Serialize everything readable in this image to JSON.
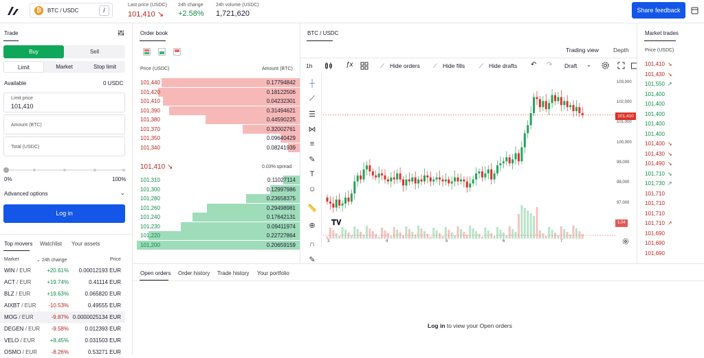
{
  "header": {
    "pair": "BTC / USDC",
    "btc_glyph": "₿",
    "slash": "/",
    "last_price_label": "Last price (USDC)",
    "last_price": "101,410",
    "change_label": "24h change",
    "change": "+2.58%",
    "volume_label": "24h volume (USDC)",
    "volume": "1,721,620",
    "share": "Share feedback"
  },
  "trade": {
    "title": "Trade",
    "buy": "Buy",
    "sell": "Sell",
    "order_types": [
      "Limit",
      "Market",
      "Stop limit"
    ],
    "available_label": "Available",
    "available_value": "0 USDC",
    "limit_label": "Limit price",
    "limit_value": "101,410",
    "amount_placeholder": "Amount (BTC)",
    "total_placeholder": "Total (USDC)",
    "slider_min": "0%",
    "slider_max": "100%",
    "advanced": "Advanced options",
    "login": "Log in"
  },
  "movers": {
    "tabs": [
      "Top movers",
      "Watchlist",
      "Your assets"
    ],
    "col_market": "Market",
    "col_change": "24h change",
    "col_price": "Price",
    "rows": [
      {
        "base": "WIN",
        "quote": "/ EUR",
        "change": "+20.61%",
        "price": "0.00012193 EUR",
        "up": true
      },
      {
        "base": "ACT",
        "quote": "/ EUR",
        "change": "+19.74%",
        "price": "0.41114 EUR",
        "up": true
      },
      {
        "base": "BLZ",
        "quote": "/ EUR",
        "change": "+19.63%",
        "price": "0.065820 EUR",
        "up": true
      },
      {
        "base": "AIXBT",
        "quote": "/ EUR",
        "change": "-10.53%",
        "price": "0.49555 EUR",
        "up": false
      },
      {
        "base": "MOG",
        "quote": "/ EUR",
        "change": "-9.87%",
        "price": "0.0000025134 EUR",
        "up": false
      },
      {
        "base": "DEGEN",
        "quote": "/ EUR",
        "change": "-9.58%",
        "price": "0.012393 EUR",
        "up": false
      },
      {
        "base": "VELO",
        "quote": "/ EUR",
        "change": "+8.45%",
        "price": "0.031503 EUR",
        "up": true
      },
      {
        "base": "OSMO",
        "quote": "/ EUR",
        "change": "-8.26%",
        "price": "0.53271 EUR",
        "up": false
      }
    ]
  },
  "orderbook": {
    "title": "Order book",
    "col_price": "Price (USDC)",
    "col_amount": "Amount (BTC)",
    "asks": [
      [
        "101,440",
        "0.17794842",
        0.85
      ],
      [
        "101,420",
        "0.18122506",
        0.87
      ],
      [
        "101,410",
        "0.04232301",
        0.84
      ],
      [
        "101,390",
        "0.31494621",
        0.8
      ],
      [
        "101,380",
        "0.44590225",
        0.58
      ],
      [
        "101,370",
        "0.32002761",
        0.35
      ],
      [
        "101,350",
        "0.09640429",
        0.12
      ],
      [
        "101,340",
        "0.08241939",
        0.07
      ]
    ],
    "mid_price": "101,410",
    "spread": "0.03% spread",
    "bids": [
      [
        "101,310",
        "0.11027114",
        0.1
      ],
      [
        "101,300",
        "0.12997986",
        0.18
      ],
      [
        "101,280",
        "0.23658375",
        0.33
      ],
      [
        "101,260",
        "0.29498981",
        0.57
      ],
      [
        "101,240",
        "0.17642131",
        0.66
      ],
      [
        "101,230",
        "0.09411974",
        0.73
      ],
      [
        "101,220",
        "0.22727864",
        0.93
      ],
      [
        "101,200",
        "0.20659159",
        1.0
      ]
    ]
  },
  "chart": {
    "tab": "BTC / USDC",
    "view_trading": "Trading view",
    "view_depth": "Depth",
    "interval": "1h",
    "hide_orders": "Hide orders",
    "hide_fills": "Hide fills",
    "hide_drafts": "Hide drafts",
    "draft": "Draft",
    "y_labels": [
      "103,000",
      "102,000",
      "101,000",
      "100,000",
      "99,000",
      "98,000",
      "97,000"
    ],
    "price_tag": "101,410",
    "vol_tag": "1.04",
    "x_labels": [
      "3",
      "4",
      "5",
      "6",
      "7"
    ]
  },
  "market_trades": {
    "title": "Market trades",
    "col": "Price (USDC)",
    "rows": [
      [
        "101,410",
        "d"
      ],
      [
        "101,430",
        "d"
      ],
      [
        "101,550",
        "u"
      ],
      [
        "101,400",
        ""
      ],
      [
        "101,400",
        ""
      ],
      [
        "101,400",
        ""
      ],
      [
        "101,400",
        ""
      ],
      [
        "101,400",
        ""
      ],
      [
        "101,400",
        "d"
      ],
      [
        "101,430",
        "d"
      ],
      [
        "101,490",
        "d"
      ],
      [
        "101,710",
        "d"
      ],
      [
        "101,730",
        "u"
      ],
      [
        "101,710",
        ""
      ],
      [
        "101,710",
        ""
      ],
      [
        "101,710",
        ""
      ],
      [
        "101,710",
        "u"
      ],
      [
        "101,690",
        ""
      ],
      [
        "101,690",
        ""
      ],
      [
        "101,690",
        ""
      ]
    ]
  },
  "bottom": {
    "tabs": [
      "Open orders",
      "Order history",
      "Trade history",
      "Your portfolio"
    ],
    "login_link": "Log in",
    "login_rest": " to view your Open orders"
  }
}
